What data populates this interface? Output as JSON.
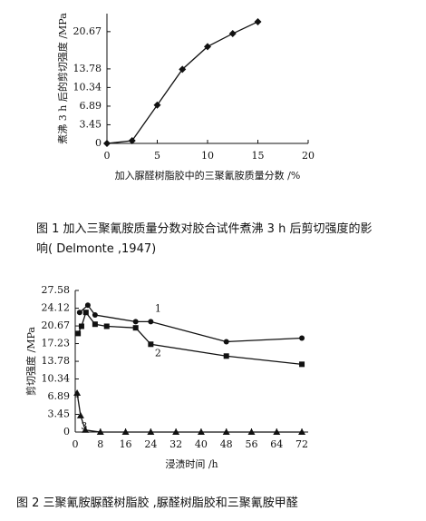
{
  "chart_data": [
    {
      "type": "line",
      "x_label": "加入脲醛树脂胶中的三聚氰胺质量分数 /%",
      "y_label": "煮沸 3 h 后的剪切强度 /MPa",
      "caption": "图 1 加入三聚氰胺质量分数对胶合试件煮沸 3 h 后剪切强度的影响( Delmonte ,1947)",
      "xlim": [
        0,
        20
      ],
      "xticks": [
        0,
        5,
        10,
        15,
        20
      ],
      "ylim": [
        0,
        24
      ],
      "yticks": [
        0,
        3.45,
        6.89,
        10.34,
        13.78,
        20.67
      ],
      "series": [
        {
          "color": "#111111",
          "marker": "diamond",
          "x": [
            0,
            2.5,
            5,
            7.5,
            10,
            12.5,
            15
          ],
          "values": [
            0,
            0.5,
            7.1,
            13.7,
            17.9,
            20.3,
            22.5
          ]
        }
      ]
    },
    {
      "type": "line",
      "x_label": "浸渍时间 /h",
      "y_label": "剪切强度 /MPa",
      "caption": "图 2 三聚氰胺脲醛树脂胶 ,脲醛树脂胶和三聚氰胺甲醛",
      "xlim": [
        0,
        74
      ],
      "xticks": [
        0,
        8,
        16,
        24,
        32,
        40,
        48,
        56,
        64,
        72
      ],
      "ylim": [
        0,
        27.58
      ],
      "yticks": [
        0,
        3.45,
        6.89,
        10.34,
        13.78,
        17.23,
        20.67,
        24.12,
        27.58
      ],
      "series": [
        {
          "name": "1",
          "color": "#111111",
          "marker": "circle",
          "x": [
            1.4,
            4,
            6.3,
            19.2,
            24,
            48,
            72
          ],
          "values": [
            23.3,
            24.7,
            22.8,
            21.5,
            21.5,
            17.6,
            18.3
          ]
        },
        {
          "name": "2",
          "color": "#111111",
          "marker": "square",
          "x": [
            0.9,
            2,
            3.4,
            6.3,
            10,
            19.2,
            24,
            48,
            72
          ],
          "values": [
            19.2,
            20.6,
            23.3,
            21,
            20.6,
            20.3,
            17.1,
            14.8,
            13.2
          ]
        },
        {
          "name": "3",
          "color": "#111111",
          "marker": "triangle",
          "x": [
            0.6,
            1.7,
            3.2,
            8,
            16,
            24,
            32,
            40,
            48,
            56,
            64,
            72
          ],
          "values": [
            7.6,
            3.2,
            0.4,
            0,
            0,
            0,
            0,
            0,
            0,
            0,
            0,
            0
          ]
        }
      ]
    }
  ]
}
